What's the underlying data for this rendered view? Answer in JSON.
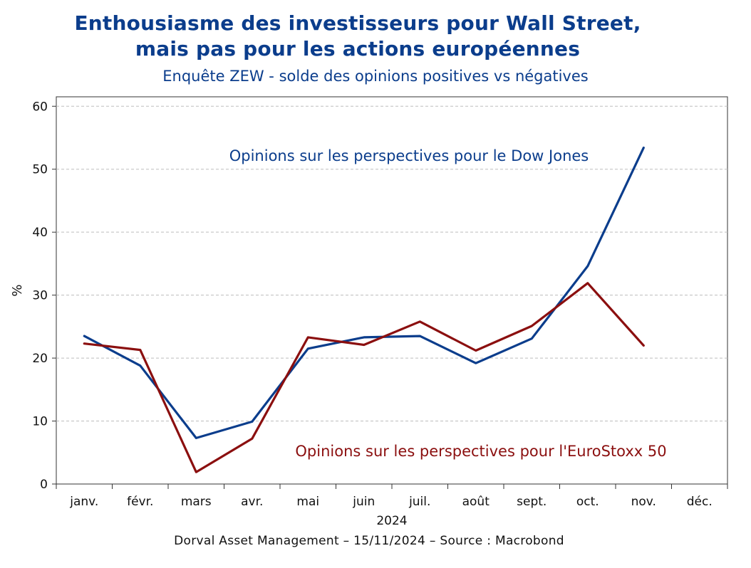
{
  "header": {
    "title_line1": "Enthousiasme des investisseurs pour Wall Street,",
    "title_line2": "mais pas pour les actions européennes",
    "subtitle": "Enquête ZEW  - solde des opinions positives vs négatives"
  },
  "footer": {
    "text": "Dorval Asset Management    – 15/11/2024   –   Source : Macrobond"
  },
  "chart_data": {
    "type": "line",
    "title": "Enthousiasme des investisseurs pour Wall Street, mais pas pour les actions européennes",
    "subtitle": "Enquête ZEW  - solde des opinions positives vs négatives",
    "ylabel": "%",
    "xlabel": "2024",
    "categories": [
      "janv.",
      "févr.",
      "mars",
      "avr.",
      "mai",
      "juin",
      "juil.",
      "août",
      "sept.",
      "oct.",
      "nov.",
      "déc."
    ],
    "yticks": [
      0,
      10,
      20,
      30,
      40,
      50,
      60
    ],
    "ylim": [
      0,
      61.5
    ],
    "grid": true,
    "series": [
      {
        "name": "Opinions sur les perspectives pour le Dow Jones",
        "color": "#0b3d8c",
        "values": [
          23.5,
          18.8,
          7.3,
          9.9,
          21.5,
          23.3,
          23.5,
          19.2,
          23.1,
          34.6,
          53.4,
          null
        ]
      },
      {
        "name": "Opinions sur les perspectives pour l'EuroStoxx 50",
        "color": "#8b0f0f",
        "values": [
          22.3,
          21.3,
          1.9,
          7.2,
          23.3,
          22.1,
          25.8,
          21.2,
          25.1,
          31.9,
          22.0,
          null
        ]
      }
    ]
  }
}
